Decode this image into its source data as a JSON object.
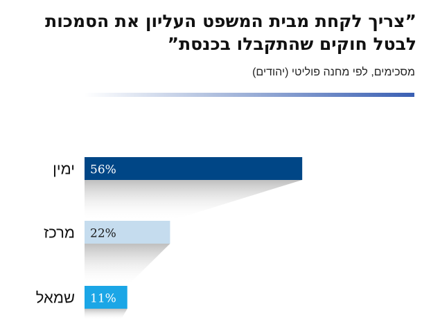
{
  "title_lines": [
    "”צריך לקחת מבית המשפט העליון את הסמכות",
    "לבטל חוקים שהתקבלו בכנסת”"
  ],
  "subtitle": "מסכימים, לפי מחנה פוליטי (יהודים)",
  "colors": {
    "bars": [
      "#004686",
      "#c5dcee",
      "#1ba6e6"
    ],
    "labels": [
      "#ffffff",
      "#1a1a1a",
      "#ffffff"
    ],
    "rule_end": "#3a5fb3"
  },
  "chart_data": {
    "type": "bar",
    "orientation": "horizontal",
    "categories": [
      "ימין",
      "מרכז",
      "שמאל"
    ],
    "values": [
      56,
      22,
      11
    ],
    "value_labels": [
      "56%",
      "22%",
      "11%"
    ],
    "title": "”צריך לקחת מבית המשפט העליון את הסמכות לבטל חוקים שהתקבלו בכנסת”",
    "subtitle": "מסכימים, לפי מחנה פוליטי (יהודים)",
    "xlim": [
      0,
      100
    ],
    "grid": false,
    "legend": "none"
  }
}
